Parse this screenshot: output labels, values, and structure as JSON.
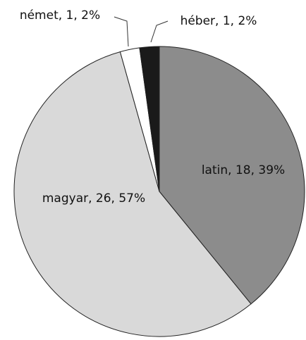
{
  "chart_data": {
    "type": "pie",
    "categories": [
      "latin",
      "magyar",
      "német",
      "héber"
    ],
    "values": [
      18,
      26,
      1,
      1
    ],
    "value_labels": [
      "latin, 18, 39%",
      "magyar, 26, 57%",
      "német, 1, 2%",
      "héber, 1, 2%"
    ],
    "colors": [
      "#8c8c8c",
      "#d9d9d9",
      "#ffffff",
      "#1a1a1a"
    ]
  }
}
